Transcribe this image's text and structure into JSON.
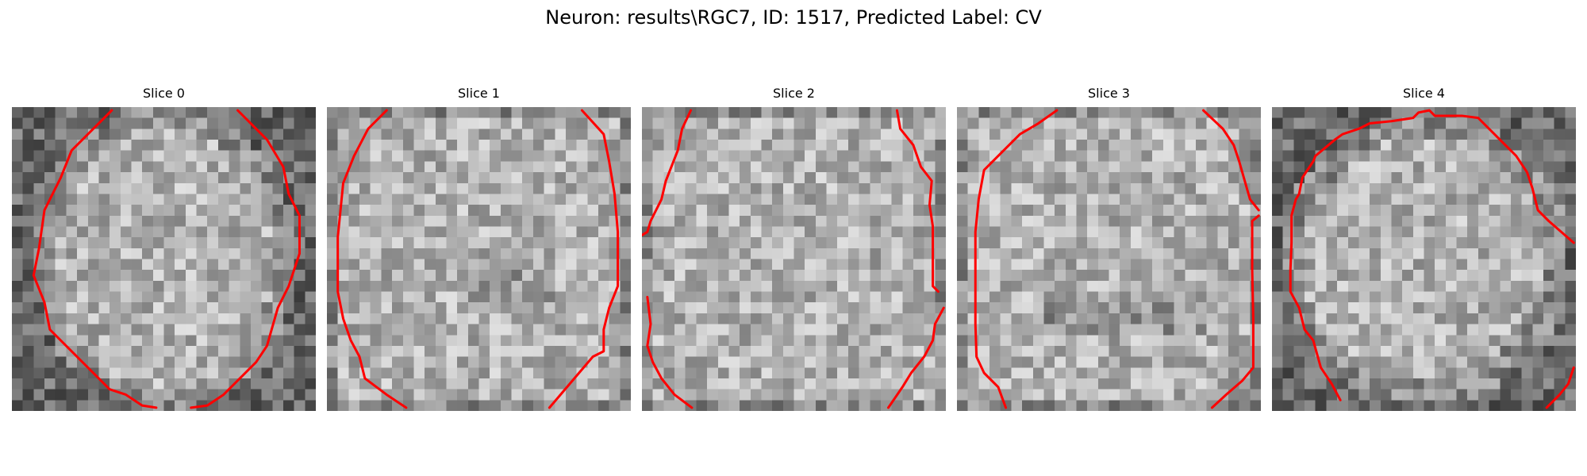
{
  "figure": {
    "title": "Neuron: results\\RGC7, ID: 1517, Predicted Label: CV",
    "contour_color": "#ff0000",
    "colormap": "gray"
  },
  "panels": [
    {
      "title": "Slice 0",
      "bright_region": "oval"
    },
    {
      "title": "Slice 1",
      "bright_region": "full"
    },
    {
      "title": "Slice 2",
      "bright_region": "full"
    },
    {
      "title": "Slice 3",
      "bright_region": "full"
    },
    {
      "title": "Slice 4",
      "bright_region": "round"
    }
  ]
}
